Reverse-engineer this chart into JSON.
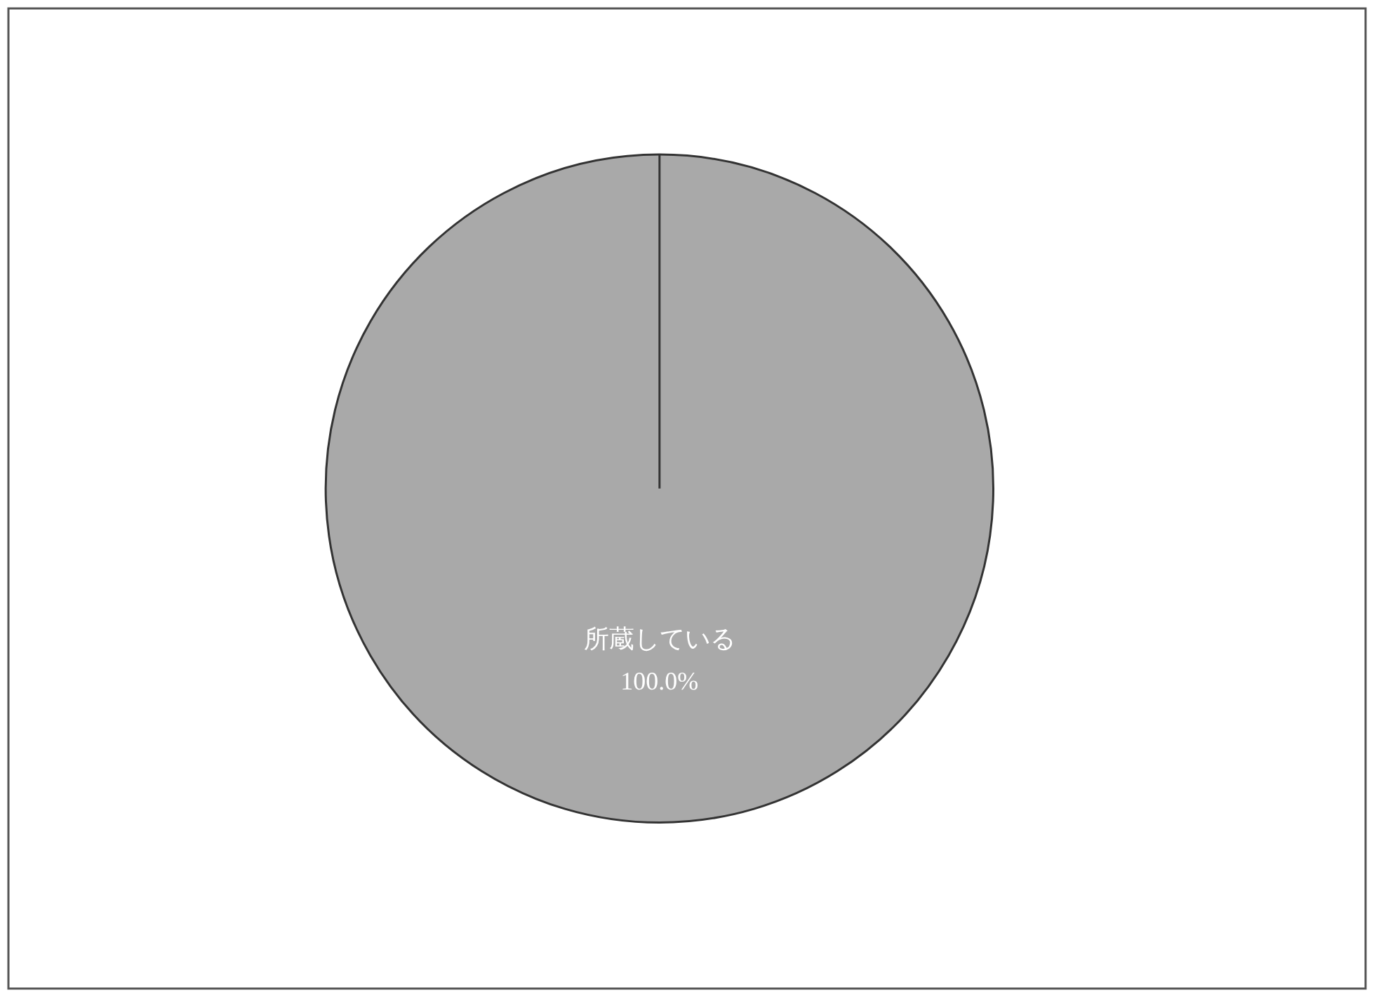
{
  "chart_data": {
    "type": "pie",
    "categories": [
      "所蔵している"
    ],
    "values": [
      100
    ],
    "colors": [
      "#a9a9a9"
    ],
    "value_labels": [
      "100.0%"
    ],
    "legend": false,
    "needle": "所蔵している"
  }
}
